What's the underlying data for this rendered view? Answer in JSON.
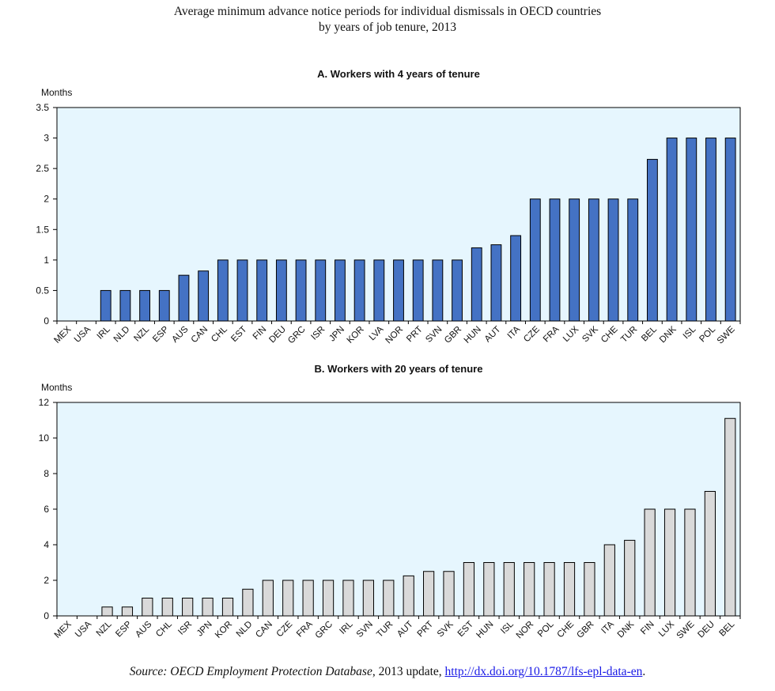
{
  "title": "Average minimum advance notice periods for individual dismissals in OECD countries",
  "subtitle": "by years of job tenure, 2013",
  "source": {
    "prefix": "Source: ",
    "italic": "OECD Employment Protection Database",
    "middle": ", 2013 update, ",
    "link": "http://dx.doi.org/10.1787/lfs-epl-data-en",
    "suffix": "."
  },
  "colors": {
    "panel_bg": "#e6f6fe",
    "bar_a": "#4472c4",
    "bar_b": "#d9d9d9",
    "bar_stroke": "#000000"
  },
  "chart_data": [
    {
      "type": "bar",
      "title": "A. Workers with 4 years of tenure",
      "ylabel": "Months",
      "xlabel": "",
      "ylim": [
        0,
        3.5
      ],
      "yticks": [
        0,
        0.5,
        1,
        1.5,
        2,
        2.5,
        3,
        3.5
      ],
      "ytick_labels": [
        "0",
        "0.5",
        "1",
        "1.5",
        "2",
        "2.5",
        "3",
        "3.5"
      ],
      "grid": false,
      "categories": [
        "MEX",
        "USA",
        "IRL",
        "NLD",
        "NZL",
        "ESP",
        "AUS",
        "CAN",
        "CHL",
        "EST",
        "FIN",
        "DEU",
        "GRC",
        "ISR",
        "JPN",
        "KOR",
        "LVA",
        "NOR",
        "PRT",
        "SVN",
        "GBR",
        "HUN",
        "AUT",
        "ITA",
        "CZE",
        "FRA",
        "LUX",
        "SVK",
        "CHE",
        "TUR",
        "BEL",
        "DNK",
        "ISL",
        "POL",
        "SWE"
      ],
      "values": [
        0,
        0,
        0.5,
        0.5,
        0.5,
        0.5,
        0.75,
        0.82,
        1,
        1,
        1,
        1,
        1,
        1,
        1,
        1,
        1,
        1,
        1,
        1,
        1,
        1.2,
        1.25,
        1.4,
        2,
        2,
        2,
        2,
        2,
        2,
        2.65,
        3,
        3,
        3,
        3
      ]
    },
    {
      "type": "bar",
      "title": "B. Workers with 20 years of tenure",
      "ylabel": "Months",
      "xlabel": "",
      "ylim": [
        0,
        12
      ],
      "yticks": [
        0,
        2,
        4,
        6,
        8,
        10,
        12
      ],
      "ytick_labels": [
        "0",
        "2",
        "4",
        "6",
        "8",
        "10",
        "12"
      ],
      "grid": false,
      "categories": [
        "MEX",
        "USA",
        "NZL",
        "ESP",
        "AUS",
        "CHL",
        "ISR",
        "JPN",
        "KOR",
        "NLD",
        "CAN",
        "CZE",
        "FRA",
        "GRC",
        "IRL",
        "SVN",
        "TUR",
        "AUT",
        "PRT",
        "SVK",
        "EST",
        "HUN",
        "ISL",
        "NOR",
        "POL",
        "CHE",
        "GBR",
        "ITA",
        "DNK",
        "FIN",
        "LUX",
        "SWE",
        "DEU",
        "BEL"
      ],
      "values": [
        0,
        0,
        0.5,
        0.5,
        1,
        1,
        1,
        1,
        1,
        1.5,
        2,
        2,
        2,
        2,
        2,
        2,
        2,
        2.25,
        2.5,
        2.5,
        3,
        3,
        3,
        3,
        3,
        3,
        3,
        4,
        4.25,
        6,
        6,
        6,
        7,
        11.1
      ]
    }
  ]
}
